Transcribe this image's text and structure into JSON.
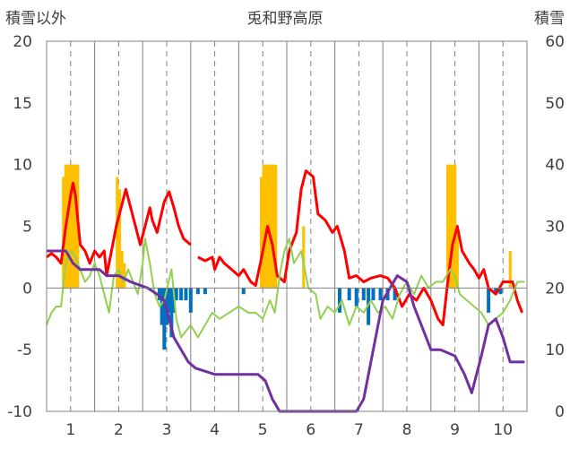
{
  "chart_data": {
    "type": "bar+line",
    "title": "兎和野高原",
    "ylabel_left": "積雪以外",
    "ylabel_right": "積雪",
    "ylim_left": [
      -10,
      20
    ],
    "ylim_right": [
      0,
      60
    ],
    "yticks_left": [
      "20",
      "15",
      "10",
      "5",
      "0",
      "-5",
      "-10"
    ],
    "yticks_right": [
      "60",
      "50",
      "40",
      "30",
      "20",
      "10",
      "0"
    ],
    "xlim": [
      0.5,
      10.5
    ],
    "xticks": [
      "1",
      "2",
      "3",
      "4",
      "5",
      "6",
      "7",
      "8",
      "9",
      "10"
    ],
    "grid": "dashed-vertical",
    "colors": {
      "precipitation": "#ffc000",
      "snow_change": "#0070c0",
      "max_temp": "#ff0000",
      "min_temp": "#92d050",
      "snow_depth": "#7030a0",
      "grid": "#808080"
    },
    "precipitation_bars": [
      [
        0.85,
        9
      ],
      [
        0.9,
        10
      ],
      [
        0.95,
        10
      ],
      [
        1.0,
        10
      ],
      [
        1.05,
        10
      ],
      [
        1.1,
        10
      ],
      [
        1.15,
        10
      ],
      [
        1.97,
        9
      ],
      [
        2.02,
        8
      ],
      [
        2.07,
        3
      ],
      [
        2.12,
        2
      ],
      [
        4.97,
        9
      ],
      [
        5.02,
        10
      ],
      [
        5.07,
        10
      ],
      [
        5.12,
        10
      ],
      [
        5.17,
        10
      ],
      [
        5.22,
        10
      ],
      [
        5.27,
        10
      ],
      [
        5.85,
        5
      ],
      [
        8.85,
        10
      ],
      [
        8.9,
        10
      ],
      [
        8.95,
        10
      ],
      [
        9.0,
        10
      ],
      [
        9.05,
        5
      ],
      [
        10.15,
        3
      ]
    ],
    "snow_change_bars": [
      [
        2.85,
        -1
      ],
      [
        2.9,
        -3
      ],
      [
        2.95,
        -5
      ],
      [
        3.0,
        -3
      ],
      [
        3.05,
        -2
      ],
      [
        3.1,
        -4
      ],
      [
        3.15,
        -2
      ],
      [
        3.2,
        -1
      ],
      [
        3.3,
        -1
      ],
      [
        3.4,
        -1
      ],
      [
        3.5,
        -2
      ],
      [
        3.65,
        -0.5
      ],
      [
        3.8,
        -0.5
      ],
      [
        4.6,
        -0.5
      ],
      [
        6.6,
        -2
      ],
      [
        6.8,
        -1
      ],
      [
        6.95,
        -1.5
      ],
      [
        7.1,
        -1
      ],
      [
        7.2,
        -3
      ],
      [
        7.3,
        -1
      ],
      [
        7.45,
        -1
      ],
      [
        7.6,
        -1
      ],
      [
        7.75,
        -1
      ],
      [
        9.7,
        -2
      ],
      [
        9.85,
        -0.5
      ],
      [
        9.95,
        -0.5
      ]
    ],
    "series": [
      {
        "name": "",
        "axis": "left",
        "points": [
          [
            0.5,
            2.5
          ],
          [
            0.6,
            2.8
          ],
          [
            0.7,
            2.5
          ],
          [
            0.8,
            2.0
          ],
          [
            0.9,
            5
          ],
          [
            1.0,
            7.5
          ],
          [
            1.05,
            8.5
          ],
          [
            1.1,
            7.5
          ],
          [
            1.2,
            3.5
          ],
          [
            1.3,
            3.0
          ],
          [
            1.4,
            2.0
          ],
          [
            1.5,
            3.0
          ],
          [
            1.6,
            2.5
          ],
          [
            1.7,
            3.0
          ],
          [
            1.75,
            1.0
          ],
          [
            1.85,
            3.0
          ],
          [
            1.95,
            5.0
          ],
          [
            2.05,
            6.5
          ],
          [
            2.15,
            8.0
          ],
          [
            2.25,
            6.5
          ],
          [
            2.35,
            5.0
          ],
          [
            2.45,
            3.5
          ],
          [
            2.55,
            5.0
          ],
          [
            2.65,
            6.5
          ],
          [
            2.7,
            5.5
          ],
          [
            2.8,
            4.5
          ],
          [
            2.95,
            7.0
          ],
          [
            3.05,
            7.8
          ],
          [
            3.15,
            6.5
          ],
          [
            3.25,
            5.0
          ],
          [
            3.35,
            4.0
          ],
          [
            3.5,
            3.5
          ]
        ]
      },
      {
        "name": "",
        "axis": "left",
        "points": [
          [
            3.65,
            2.5
          ],
          [
            3.8,
            2.2
          ],
          [
            3.95,
            2.5
          ],
          [
            4.0,
            1.5
          ],
          [
            4.1,
            2.5
          ],
          [
            4.2,
            2.0
          ],
          [
            4.35,
            1.5
          ],
          [
            4.5,
            1.0
          ],
          [
            4.6,
            1.5
          ],
          [
            4.75,
            0.5
          ],
          [
            4.85,
            0.2
          ],
          [
            4.95,
            2.0
          ],
          [
            5.05,
            4.0
          ],
          [
            5.1,
            5.0
          ],
          [
            5.2,
            3.5
          ],
          [
            5.3,
            1.0
          ],
          [
            5.45,
            0.5
          ],
          [
            5.55,
            3.0
          ],
          [
            5.7,
            4.5
          ],
          [
            5.8,
            8.0
          ],
          [
            5.9,
            9.5
          ],
          [
            6.05,
            9.0
          ],
          [
            6.15,
            6.0
          ],
          [
            6.3,
            5.5
          ],
          [
            6.45,
            4.5
          ],
          [
            6.55,
            5.0
          ],
          [
            6.7,
            3.0
          ],
          [
            6.8,
            0.8
          ],
          [
            6.95,
            1.0
          ],
          [
            7.1,
            0.5
          ],
          [
            7.25,
            0.8
          ],
          [
            7.45,
            1.0
          ],
          [
            7.6,
            0.8
          ],
          [
            7.75,
            0.0
          ],
          [
            7.9,
            -1.5
          ],
          [
            8.05,
            -0.5
          ],
          [
            8.2,
            -1.0
          ],
          [
            8.35,
            0.0
          ],
          [
            8.5,
            -1.0
          ],
          [
            8.65,
            -2.5
          ],
          [
            8.75,
            -3.0
          ],
          [
            8.85,
            0.5
          ],
          [
            8.95,
            3.5
          ],
          [
            9.05,
            5.0
          ],
          [
            9.15,
            3.0
          ],
          [
            9.3,
            2.0
          ],
          [
            9.4,
            1.5
          ],
          [
            9.5,
            0.8
          ],
          [
            9.6,
            1.5
          ],
          [
            9.7,
            0.0
          ],
          [
            9.85,
            -0.5
          ],
          [
            10.0,
            0.5
          ],
          [
            10.1,
            0.5
          ],
          [
            10.2,
            0.5
          ],
          [
            10.3,
            -1.0
          ],
          [
            10.4,
            -2.0
          ]
        ]
      },
      {
        "name": "",
        "axis": "left",
        "points": [
          [
            0.5,
            -3.0
          ],
          [
            0.6,
            -2.0
          ],
          [
            0.7,
            -1.5
          ],
          [
            0.8,
            -1.5
          ],
          [
            0.9,
            2.0
          ],
          [
            1.0,
            3.0
          ],
          [
            1.1,
            2.5
          ],
          [
            1.2,
            1.5
          ],
          [
            1.3,
            0.5
          ],
          [
            1.4,
            1.0
          ],
          [
            1.5,
            2.0
          ],
          [
            1.6,
            1.0
          ],
          [
            1.7,
            -0.5
          ],
          [
            1.8,
            -2.0
          ],
          [
            1.9,
            1.0
          ],
          [
            2.0,
            1.5
          ],
          [
            2.1,
            0.5
          ],
          [
            2.2,
            1.5
          ],
          [
            2.3,
            0.5
          ],
          [
            2.4,
            -0.5
          ],
          [
            2.5,
            2.0
          ],
          [
            2.55,
            4.0
          ],
          [
            2.65,
            2.0
          ],
          [
            2.75,
            -0.5
          ],
          [
            2.85,
            -1.5
          ],
          [
            2.95,
            -1.0
          ],
          [
            3.1,
            1.5
          ],
          [
            3.2,
            -2.5
          ],
          [
            3.3,
            -4.0
          ],
          [
            3.5,
            -3.0
          ],
          [
            3.65,
            -4.0
          ],
          [
            3.8,
            -3.0
          ],
          [
            3.95,
            -2.0
          ],
          [
            4.1,
            -2.5
          ],
          [
            4.3,
            -2.0
          ],
          [
            4.5,
            -1.5
          ],
          [
            4.7,
            -2.0
          ],
          [
            4.85,
            -2.0
          ],
          [
            5.0,
            -2.5
          ],
          [
            5.15,
            -1.0
          ],
          [
            5.25,
            -2.0
          ],
          [
            5.35,
            1.0
          ],
          [
            5.45,
            3.0
          ],
          [
            5.55,
            4.0
          ],
          [
            5.65,
            2.0
          ],
          [
            5.8,
            3.0
          ],
          [
            5.95,
            0.0
          ],
          [
            6.1,
            -0.5
          ],
          [
            6.2,
            -2.5
          ],
          [
            6.35,
            -1.5
          ],
          [
            6.5,
            -2.0
          ],
          [
            6.65,
            -1.0
          ],
          [
            6.8,
            -3.0
          ],
          [
            6.95,
            -1.5
          ],
          [
            7.1,
            -2.0
          ],
          [
            7.25,
            -1.0
          ],
          [
            7.4,
            -2.0
          ],
          [
            7.55,
            -1.5
          ],
          [
            7.7,
            -2.5
          ],
          [
            7.85,
            -0.5
          ],
          [
            8.0,
            0.5
          ],
          [
            8.15,
            -0.5
          ],
          [
            8.3,
            1.0
          ],
          [
            8.45,
            0.0
          ],
          [
            8.6,
            0.5
          ],
          [
            8.75,
            0.5
          ],
          [
            8.9,
            1.5
          ],
          [
            9.0,
            1.0
          ],
          [
            9.1,
            -0.5
          ],
          [
            9.25,
            -1.0
          ],
          [
            9.4,
            -1.5
          ],
          [
            9.55,
            -2.0
          ],
          [
            9.7,
            -3.0
          ],
          [
            9.85,
            -2.5
          ],
          [
            10.0,
            -2.0
          ],
          [
            10.15,
            -1.0
          ],
          [
            10.3,
            0.5
          ],
          [
            10.45,
            0.5
          ]
        ]
      },
      {
        "name": "",
        "axis": "right",
        "points": [
          [
            0.5,
            26
          ],
          [
            0.9,
            26
          ],
          [
            1.05,
            24
          ],
          [
            1.2,
            23
          ],
          [
            1.6,
            23
          ],
          [
            1.75,
            22
          ],
          [
            2.0,
            22
          ],
          [
            2.25,
            21
          ],
          [
            2.6,
            20
          ],
          [
            2.8,
            19
          ],
          [
            2.95,
            18
          ],
          [
            3.05,
            15
          ],
          [
            3.15,
            12
          ],
          [
            3.3,
            10
          ],
          [
            3.45,
            8
          ],
          [
            3.6,
            7
          ],
          [
            4.0,
            6
          ],
          [
            4.5,
            6
          ],
          [
            4.9,
            6
          ],
          [
            5.05,
            5
          ],
          [
            5.2,
            2
          ],
          [
            5.35,
            0
          ],
          [
            6.2,
            0
          ],
          [
            6.5,
            0
          ],
          [
            6.95,
            0
          ],
          [
            7.1,
            2
          ],
          [
            7.3,
            10
          ],
          [
            7.5,
            18
          ],
          [
            7.8,
            22
          ],
          [
            8.0,
            21
          ],
          [
            8.15,
            17
          ],
          [
            8.3,
            14
          ],
          [
            8.5,
            10
          ],
          [
            8.7,
            10
          ],
          [
            9.0,
            9
          ],
          [
            9.2,
            6
          ],
          [
            9.35,
            3
          ],
          [
            9.45,
            6
          ],
          [
            9.55,
            9
          ],
          [
            9.7,
            14
          ],
          [
            9.85,
            15
          ],
          [
            10.0,
            12
          ],
          [
            10.15,
            8
          ],
          [
            10.3,
            8
          ],
          [
            10.45,
            8
          ]
        ]
      }
    ]
  }
}
